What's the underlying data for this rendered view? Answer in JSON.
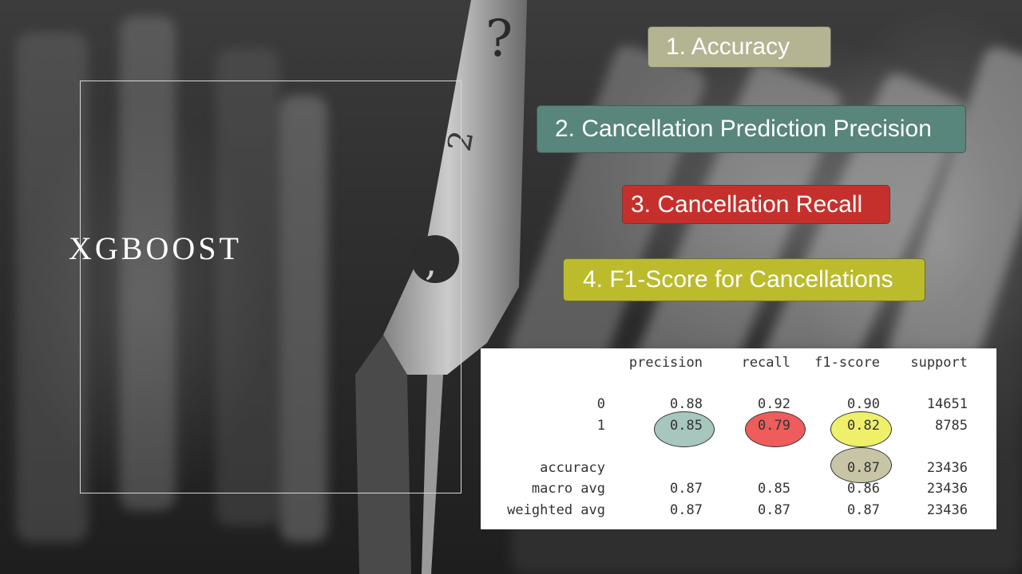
{
  "slide": {
    "title": "XGBOOST"
  },
  "metrics": [
    {
      "label": "1.  Accuracy",
      "color": "#b4b493"
    },
    {
      "label": "2. Cancellation Prediction Precision",
      "color": "#58857c"
    },
    {
      "label": "3. Cancellation Recall",
      "color": "#c6302c"
    },
    {
      "label": "4. F1-Score for Cancellations",
      "color": "#bbbb2c"
    }
  ],
  "report": {
    "header": {
      "precision": "precision",
      "recall": "recall",
      "f1": "f1-score",
      "support": "support"
    },
    "rows": [
      {
        "label": "0",
        "precision": "0.88",
        "recall": "0.92",
        "f1": "0.90",
        "support": "14651"
      },
      {
        "label": "1",
        "precision": "0.85",
        "recall": "0.79",
        "f1": "0.82",
        "support": "8785"
      },
      {
        "label": "accuracy",
        "precision": "",
        "recall": "",
        "f1": "0.87",
        "support": "23436"
      },
      {
        "label": "macro avg",
        "precision": "0.87",
        "recall": "0.85",
        "f1": "0.86",
        "support": "23436"
      },
      {
        "label": "weighted avg",
        "precision": "0.87",
        "recall": "0.87",
        "f1": "0.87",
        "support": "23436"
      }
    ],
    "highlight_colors": {
      "precision": "#a7c6bd",
      "recall": "#ee5c5c",
      "f1": "#eef06a",
      "accuracy": "#c7c5a6"
    }
  }
}
